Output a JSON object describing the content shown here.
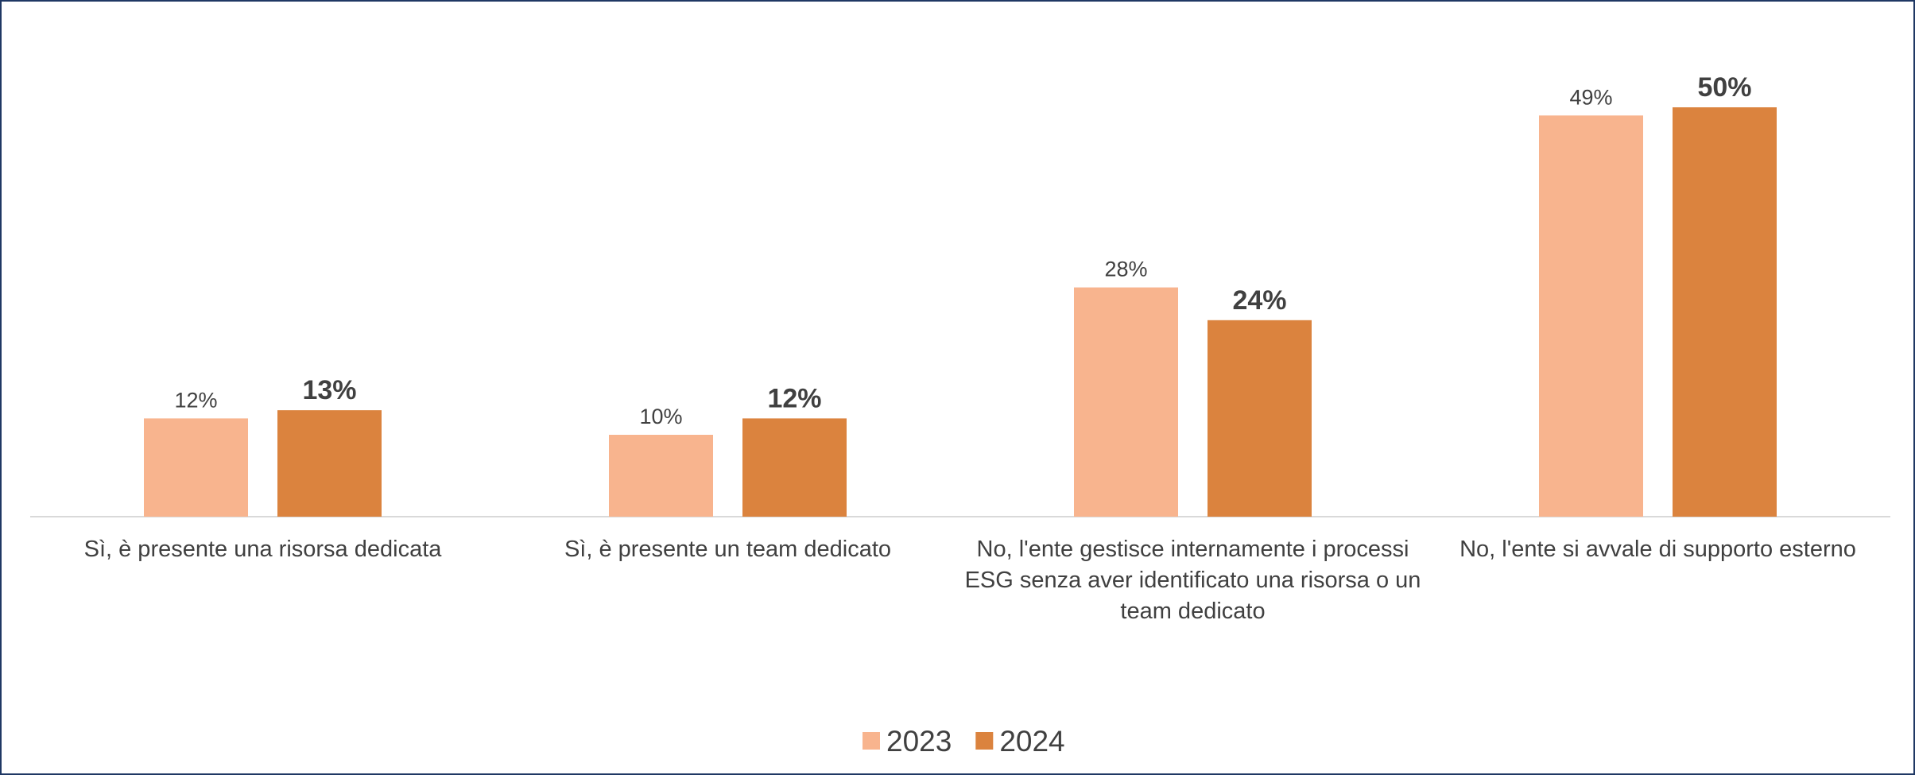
{
  "chart_data": {
    "type": "bar",
    "categories": [
      "Sì, è presente una risorsa dedicata",
      "Sì, è presente un team dedicato",
      "No, l'ente gestisce internamente i processi ESG senza aver identificato una risorsa o un team dedicato",
      "No, l'ente si avvale di supporto esterno"
    ],
    "series": [
      {
        "name": "2023",
        "color": "#f8b48e",
        "values": [
          12,
          10,
          28,
          49
        ],
        "value_labels": [
          "12%",
          "10%",
          "28%",
          "49%"
        ]
      },
      {
        "name": "2024",
        "color": "#db833e",
        "values": [
          13,
          12,
          24,
          50
        ],
        "value_labels": [
          "13%",
          "12%",
          "24%",
          "50%"
        ]
      }
    ],
    "legend": "bottom"
  }
}
